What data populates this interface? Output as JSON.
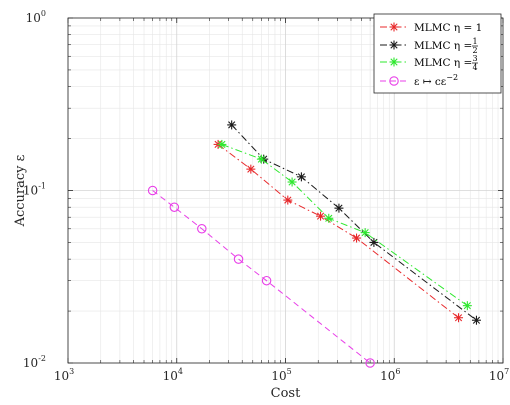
{
  "chart_data": {
    "type": "line",
    "xscale": "log",
    "yscale": "log",
    "xlim": [
      1000,
      10000000
    ],
    "ylim": [
      0.01,
      1
    ],
    "xlabel": "Cost",
    "ylabel": "Accuracy ε",
    "grid": true,
    "legend_position": "top-right",
    "x_ticks": [
      {
        "base": "10",
        "exp": "3",
        "value": 1000
      },
      {
        "base": "10",
        "exp": "4",
        "value": 10000
      },
      {
        "base": "10",
        "exp": "5",
        "value": 100000
      },
      {
        "base": "10",
        "exp": "6",
        "value": 1000000
      },
      {
        "base": "10",
        "exp": "7",
        "value": 10000000
      }
    ],
    "y_ticks": [
      {
        "base": "10",
        "exp": "0",
        "value": 1
      },
      {
        "base": "10",
        "exp": "-1",
        "value": 0.1
      },
      {
        "base": "10",
        "exp": "-2",
        "value": 0.01
      }
    ],
    "series": [
      {
        "name": "MLMC η = 1",
        "label_parts": {
          "main": "MLMC η = 1"
        },
        "color": "#e8282b",
        "linestyle": "dashdot",
        "marker": "asterisk",
        "x": [
          24000,
          48000,
          105000,
          210000,
          450000,
          3900000
        ],
        "y": [
          0.185,
          0.133,
          0.088,
          0.071,
          0.053,
          0.0183
        ]
      },
      {
        "name": "MLMC η = 1/2",
        "label_parts": {
          "main": "MLMC η = ",
          "num": "1",
          "den": "2"
        },
        "color": "#1a1a1a",
        "linestyle": "dashdot",
        "marker": "asterisk",
        "x": [
          32000,
          63000,
          140000,
          310000,
          650000,
          5700000
        ],
        "y": [
          0.24,
          0.152,
          0.12,
          0.079,
          0.05,
          0.0177
        ]
      },
      {
        "name": "MLMC η = 3/4",
        "label_parts": {
          "main": "MLMC η = ",
          "num": "3",
          "den": "4"
        },
        "color": "#2ee82e",
        "linestyle": "dashdot",
        "marker": "asterisk",
        "x": [
          26000,
          60000,
          115000,
          250000,
          540000,
          4700000
        ],
        "y": [
          0.185,
          0.152,
          0.112,
          0.069,
          0.057,
          0.0215
        ]
      },
      {
        "name": "ε ↦ cε^-2",
        "label_parts": {
          "main": "ε ↦ cε",
          "sup": "−2"
        },
        "color": "#e83fe8",
        "linestyle": "dashed",
        "marker": "circle",
        "x": [
          6000,
          9500,
          17000,
          37000,
          67000,
          600000
        ],
        "y": [
          0.1,
          0.08,
          0.06,
          0.04,
          0.03,
          0.01
        ]
      }
    ]
  }
}
